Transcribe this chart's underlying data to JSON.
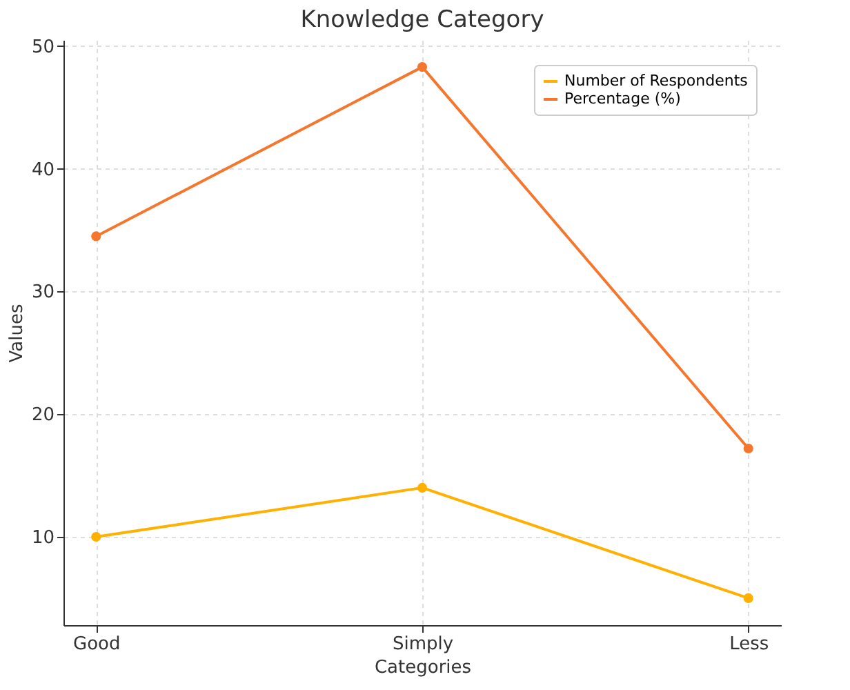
{
  "chart_data": {
    "type": "line",
    "title": "Knowledge Category",
    "xlabel": "Categories",
    "ylabel": "Values",
    "categories": [
      "Good",
      "Simply",
      "Less"
    ],
    "series": [
      {
        "name": "Number of Respondents",
        "color": "#ffb000",
        "values": [
          10,
          14,
          5
        ]
      },
      {
        "name": "Percentage (%)",
        "color": "#f4772d",
        "values": [
          34.5,
          48.3,
          17.2
        ]
      }
    ],
    "ylim": [
      2.8,
      50.5
    ],
    "yticks": [
      10,
      20,
      30,
      40,
      50
    ],
    "grid": true,
    "legend": "top right",
    "marker": "circle",
    "line_style": "solid"
  }
}
